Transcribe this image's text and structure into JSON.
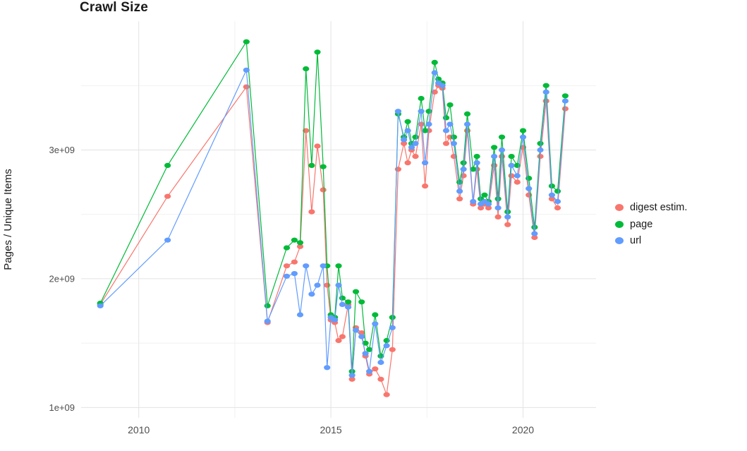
{
  "page": {
    "title": "Crawl Size"
  },
  "chart_data": {
    "type": "line",
    "title": "Crawl Size",
    "xlabel": "",
    "ylabel": "Pages / Unique Items",
    "grid": true,
    "legend_position": "right",
    "xlim": [
      2008.5,
      2021.9
    ],
    "ylim": [
      920000000.0,
      4000000000.0
    ],
    "x_tick_values": [
      2010,
      2015,
      2020
    ],
    "x_tick_labels": [
      "2010",
      "2015",
      "2020"
    ],
    "x_minor_ticks": [
      2012.5,
      2017.5
    ],
    "y_tick_values": [
      1000000000.0,
      2000000000.0,
      3000000000.0
    ],
    "y_tick_labels": [
      "1e+09",
      "2e+09",
      "3e+09"
    ],
    "y_minor_ticks": [
      1500000000.0,
      2500000000.0,
      3500000000.0
    ],
    "x": [
      2009.0,
      2010.75,
      2012.8,
      2013.35,
      2013.85,
      2014.05,
      2014.2,
      2014.35,
      2014.5,
      2014.65,
      2014.8,
      2014.9,
      2015.0,
      2015.1,
      2015.2,
      2015.3,
      2015.45,
      2015.55,
      2015.65,
      2015.8,
      2015.9,
      2016.0,
      2016.15,
      2016.3,
      2016.45,
      2016.6,
      2016.75,
      2016.9,
      2017.0,
      2017.1,
      2017.2,
      2017.35,
      2017.45,
      2017.55,
      2017.7,
      2017.8,
      2017.9,
      2018.0,
      2018.1,
      2018.2,
      2018.35,
      2018.45,
      2018.55,
      2018.7,
      2018.8,
      2018.9,
      2019.0,
      2019.1,
      2019.25,
      2019.35,
      2019.45,
      2019.6,
      2019.7,
      2019.85,
      2020.0,
      2020.15,
      2020.3,
      2020.45,
      2020.6,
      2020.75,
      2020.9,
      2021.1
    ],
    "series": [
      {
        "name": "digest estim.",
        "color": "#F8766D",
        "values": [
          1800000000.0,
          2640000000.0,
          3490000000.0,
          1660000000.0,
          2100000000.0,
          2130000000.0,
          2250000000.0,
          3150000000.0,
          2520000000.0,
          3030000000.0,
          2690000000.0,
          1950000000.0,
          1680000000.0,
          1660000000.0,
          1520000000.0,
          1550000000.0,
          1800000000.0,
          1220000000.0,
          1620000000.0,
          1580000000.0,
          1400000000.0,
          1260000000.0,
          1300000000.0,
          1220000000.0,
          1100000000.0,
          1450000000.0,
          2850000000.0,
          3050000000.0,
          2900000000.0,
          3000000000.0,
          2950000000.0,
          3200000000.0,
          2720000000.0,
          3150000000.0,
          3450000000.0,
          3500000000.0,
          3480000000.0,
          3050000000.0,
          3100000000.0,
          2950000000.0,
          2620000000.0,
          2800000000.0,
          3150000000.0,
          2580000000.0,
          2850000000.0,
          2550000000.0,
          2580000000.0,
          2550000000.0,
          2880000000.0,
          2480000000.0,
          2950000000.0,
          2420000000.0,
          2800000000.0,
          2750000000.0,
          3020000000.0,
          2650000000.0,
          2320000000.0,
          2950000000.0,
          3380000000.0,
          2620000000.0,
          2550000000.0,
          3320000000.0
        ]
      },
      {
        "name": "page",
        "color": "#00BA38",
        "values": [
          1810000000.0,
          2880000000.0,
          3840000000.0,
          1790000000.0,
          2240000000.0,
          2300000000.0,
          2280000000.0,
          3630000000.0,
          2880000000.0,
          3760000000.0,
          2870000000.0,
          2100000000.0,
          1720000000.0,
          1700000000.0,
          2100000000.0,
          1850000000.0,
          1820000000.0,
          1280000000.0,
          1900000000.0,
          1820000000.0,
          1500000000.0,
          1450000000.0,
          1720000000.0,
          1400000000.0,
          1520000000.0,
          1700000000.0,
          3280000000.0,
          3100000000.0,
          3220000000.0,
          3050000000.0,
          3100000000.0,
          3400000000.0,
          3150000000.0,
          3300000000.0,
          3680000000.0,
          3550000000.0,
          3520000000.0,
          3250000000.0,
          3350000000.0,
          3100000000.0,
          2750000000.0,
          2900000000.0,
          3280000000.0,
          2850000000.0,
          2950000000.0,
          2620000000.0,
          2650000000.0,
          2600000000.0,
          3020000000.0,
          2620000000.0,
          3100000000.0,
          2520000000.0,
          2950000000.0,
          2880000000.0,
          3150000000.0,
          2780000000.0,
          2400000000.0,
          3050000000.0,
          3500000000.0,
          2720000000.0,
          2680000000.0,
          3420000000.0
        ]
      },
      {
        "name": "url",
        "color": "#619CFF",
        "values": [
          1790000000.0,
          2300000000.0,
          3620000000.0,
          1670000000.0,
          2020000000.0,
          2040000000.0,
          1720000000.0,
          2100000000.0,
          1880000000.0,
          1950000000.0,
          2100000000.0,
          1310000000.0,
          1700000000.0,
          1680000000.0,
          1950000000.0,
          1800000000.0,
          1780000000.0,
          1250000000.0,
          1600000000.0,
          1550000000.0,
          1420000000.0,
          1280000000.0,
          1650000000.0,
          1350000000.0,
          1480000000.0,
          1620000000.0,
          3300000000.0,
          3080000000.0,
          3150000000.0,
          3020000000.0,
          3050000000.0,
          3300000000.0,
          2900000000.0,
          3200000000.0,
          3600000000.0,
          3520000000.0,
          3500000000.0,
          3150000000.0,
          3200000000.0,
          3050000000.0,
          2680000000.0,
          2850000000.0,
          3200000000.0,
          2600000000.0,
          2900000000.0,
          2580000000.0,
          2600000000.0,
          2580000000.0,
          2950000000.0,
          2550000000.0,
          3000000000.0,
          2480000000.0,
          2880000000.0,
          2800000000.0,
          3100000000.0,
          2700000000.0,
          2350000000.0,
          3000000000.0,
          3450000000.0,
          2650000000.0,
          2600000000.0,
          3380000000.0
        ]
      }
    ]
  }
}
